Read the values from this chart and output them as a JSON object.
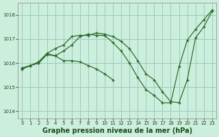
{
  "background_color": "#cceedd",
  "grid_color": "#99ccbb",
  "line_color": "#2d6b2d",
  "title": "Graphe pression niveau de la mer (hPa)",
  "title_fontsize": 7,
  "title_color": "#1a4a1a",
  "ylim": [
    1013.7,
    1018.5
  ],
  "xlim": [
    -0.5,
    23.5
  ],
  "yticks": [
    1014,
    1015,
    1016,
    1017,
    1018
  ],
  "xticks": [
    0,
    1,
    2,
    3,
    4,
    5,
    6,
    7,
    8,
    9,
    10,
    11,
    12,
    13,
    14,
    15,
    16,
    17,
    18,
    19,
    20,
    21,
    22,
    23
  ],
  "line1_x": [
    0,
    1,
    2,
    3,
    4,
    5,
    6,
    7,
    8,
    9,
    10,
    11,
    12,
    13,
    14,
    15,
    16,
    17,
    18,
    19,
    20,
    21,
    22,
    23
  ],
  "line1_y": [
    1015.8,
    1015.9,
    1016.05,
    1016.4,
    1016.6,
    1016.75,
    1017.1,
    1017.15,
    1017.15,
    1017.25,
    1017.2,
    1017.1,
    1016.9,
    1016.6,
    1016.1,
    1015.55,
    1015.3,
    1014.8,
    1014.4,
    1014.35,
    1015.3,
    1017.05,
    1017.5,
    1018.15
  ],
  "line2_x": [
    0,
    1,
    2,
    3,
    4,
    5,
    6,
    7,
    8,
    9,
    10,
    11,
    12,
    13,
    14,
    15,
    16,
    17,
    18,
    19,
    20,
    21,
    22,
    23
  ],
  "line2_y": [
    1015.75,
    1015.9,
    1016.0,
    1016.35,
    1016.3,
    1016.5,
    1016.75,
    1017.1,
    1017.2,
    1017.15,
    1017.15,
    1016.85,
    1016.5,
    1016.0,
    1015.4,
    1014.9,
    1014.65,
    1014.35,
    1014.35,
    1015.85,
    1016.95,
    1017.4,
    1017.8,
    1018.2
  ],
  "line3_x": [
    0,
    1,
    2,
    3,
    4,
    5,
    6,
    7,
    8,
    9,
    10,
    11
  ],
  "line3_y": [
    1015.75,
    1015.9,
    1016.0,
    1016.4,
    1016.3,
    1016.1,
    1016.1,
    1016.05,
    1015.9,
    1015.75,
    1015.55,
    1015.3
  ]
}
